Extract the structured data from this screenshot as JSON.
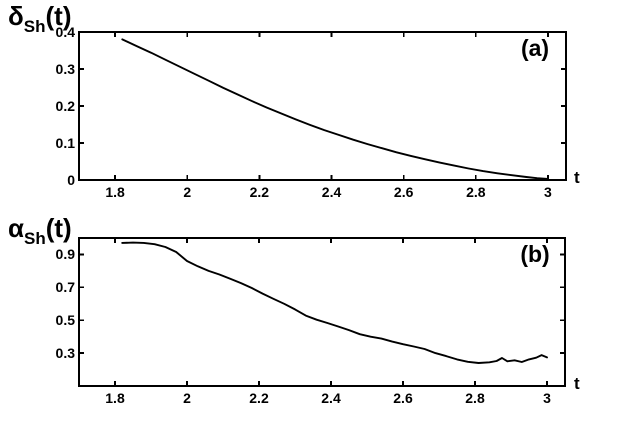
{
  "colors": {
    "background": "#ffffff",
    "foreground": "#000000"
  },
  "chart_data": [
    {
      "type": "line",
      "panel_label": "(a)",
      "title": "δSh(t)",
      "title_symbol": "δ",
      "title_sub": "Sh",
      "title_suffix": "(t)",
      "xlabel": "t",
      "ylabel": "",
      "xlim": [
        1.7,
        3.05
      ],
      "ylim": [
        0,
        0.4
      ],
      "xticks": [
        "1.8",
        "2",
        "2.2",
        "2.4",
        "2.6",
        "2.8",
        "3"
      ],
      "xtick_values": [
        1.8,
        2,
        2.2,
        2.4,
        2.6,
        2.8,
        3
      ],
      "yticks": [
        "0",
        "0.1",
        "0.2",
        "0.3",
        "0.4"
      ],
      "ytick_values": [
        0,
        0.1,
        0.2,
        0.3,
        0.4
      ],
      "grid": false,
      "legend": "none",
      "line_color": "#000000",
      "series": [
        {
          "name": "delta_Sh",
          "x": [
            1.82,
            1.86,
            1.9,
            1.94,
            1.98,
            2.02,
            2.06,
            2.1,
            2.14,
            2.18,
            2.22,
            2.26,
            2.3,
            2.34,
            2.38,
            2.42,
            2.46,
            2.5,
            2.54,
            2.58,
            2.62,
            2.66,
            2.7,
            2.74,
            2.78,
            2.82,
            2.86,
            2.9,
            2.94,
            2.97,
            3.0
          ],
          "y": [
            0.38,
            0.362,
            0.344,
            0.325,
            0.306,
            0.287,
            0.268,
            0.249,
            0.231,
            0.213,
            0.196,
            0.18,
            0.164,
            0.149,
            0.135,
            0.122,
            0.109,
            0.097,
            0.086,
            0.075,
            0.065,
            0.056,
            0.047,
            0.039,
            0.031,
            0.024,
            0.018,
            0.013,
            0.008,
            0.005,
            0.003
          ]
        }
      ]
    },
    {
      "type": "line",
      "panel_label": "(b)",
      "title": "αSh(t)",
      "title_symbol": "α",
      "title_sub": "Sh",
      "title_suffix": "(t)",
      "xlabel": "t",
      "ylabel": "",
      "xlim": [
        1.7,
        3.05
      ],
      "ylim": [
        0.1,
        1.0
      ],
      "xticks": [
        "1.8",
        "2",
        "2.2",
        "2.4",
        "2.6",
        "2.8",
        "3"
      ],
      "xtick_values": [
        1.8,
        2,
        2.2,
        2.4,
        2.6,
        2.8,
        3
      ],
      "yticks": [
        "0.3",
        "0.5",
        "0.7",
        "0.9"
      ],
      "ytick_values": [
        0.3,
        0.5,
        0.7,
        0.9
      ],
      "grid": false,
      "legend": "none",
      "line_color": "#000000",
      "series": [
        {
          "name": "alpha_Sh",
          "x": [
            1.82,
            1.85,
            1.88,
            1.91,
            1.94,
            1.97,
            2.0,
            2.03,
            2.06,
            2.09,
            2.12,
            2.15,
            2.18,
            2.21,
            2.24,
            2.27,
            2.3,
            2.33,
            2.36,
            2.39,
            2.42,
            2.45,
            2.48,
            2.51,
            2.54,
            2.57,
            2.6,
            2.63,
            2.66,
            2.69,
            2.72,
            2.75,
            2.78,
            2.81,
            2.84,
            2.86,
            2.875,
            2.89,
            2.91,
            2.93,
            2.95,
            2.97,
            2.985,
            3.0
          ],
          "y": [
            0.97,
            0.972,
            0.97,
            0.962,
            0.945,
            0.915,
            0.86,
            0.828,
            0.8,
            0.778,
            0.752,
            0.726,
            0.696,
            0.662,
            0.63,
            0.6,
            0.566,
            0.528,
            0.503,
            0.483,
            0.462,
            0.44,
            0.415,
            0.4,
            0.388,
            0.37,
            0.354,
            0.34,
            0.325,
            0.3,
            0.282,
            0.262,
            0.247,
            0.24,
            0.244,
            0.252,
            0.27,
            0.25,
            0.256,
            0.246,
            0.262,
            0.272,
            0.288,
            0.274
          ]
        }
      ]
    }
  ]
}
